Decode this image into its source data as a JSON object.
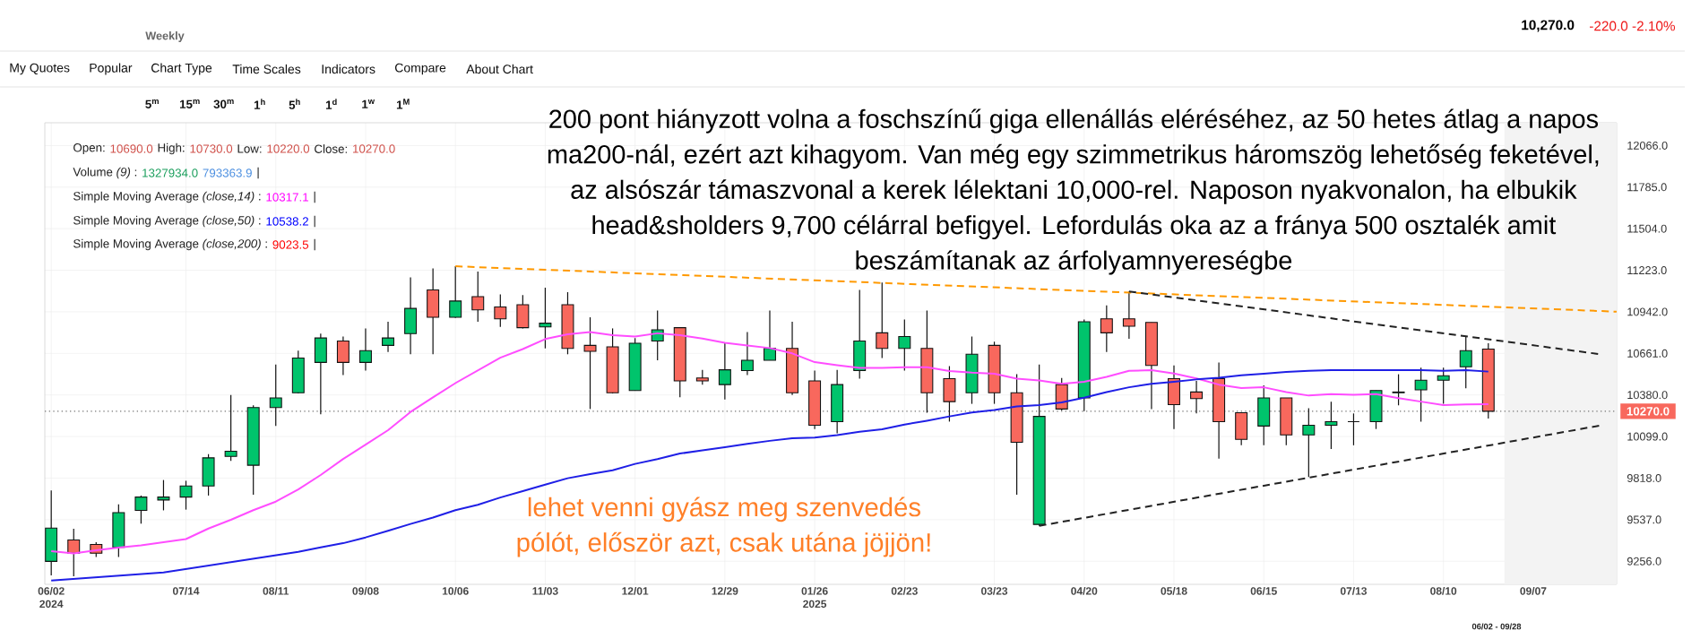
{
  "chart_data": {
    "type": "candlestick",
    "subtitle": "Weekly",
    "x": [
      "2024-06-02",
      "2024-06-09",
      "2024-06-16",
      "2024-06-23",
      "2024-06-30",
      "2024-07-07",
      "2024-07-14",
      "2024-07-21",
      "2024-07-28",
      "2024-08-04",
      "2024-08-11",
      "2024-08-18",
      "2024-08-25",
      "2024-09-01",
      "2024-09-08",
      "2024-09-15",
      "2024-09-22",
      "2024-09-29",
      "2024-10-06",
      "2024-10-13",
      "2024-10-20",
      "2024-10-27",
      "2024-11-03",
      "2024-11-10",
      "2024-11-17",
      "2024-11-24",
      "2024-12-01",
      "2024-12-08",
      "2024-12-15",
      "2024-12-22",
      "2024-12-29",
      "2025-01-05",
      "2025-01-12",
      "2025-01-19",
      "2025-01-26",
      "2025-02-02",
      "2025-02-09",
      "2025-02-16",
      "2025-02-23",
      "2025-03-02",
      "2025-03-09",
      "2025-03-16",
      "2025-03-23",
      "2025-03-30",
      "2025-04-06",
      "2025-04-13",
      "2025-04-20",
      "2025-04-27",
      "2025-05-04",
      "2025-05-11",
      "2025-05-18",
      "2025-05-25",
      "2025-06-01",
      "2025-06-08",
      "2025-06-15",
      "2025-06-22",
      "2025-06-29",
      "2025-07-06",
      "2025-07-13",
      "2025-07-20",
      "2025-07-27",
      "2025-08-03",
      "2025-08-10",
      "2025-08-17",
      "2025-08-24"
    ],
    "ohlc": [
      [
        9255,
        9735,
        9160,
        9480
      ],
      [
        9400,
        9475,
        9155,
        9310
      ],
      [
        9370,
        9385,
        9285,
        9310
      ],
      [
        9350,
        9640,
        9285,
        9585
      ],
      [
        9600,
        9700,
        9510,
        9690
      ],
      [
        9670,
        9805,
        9600,
        9690
      ],
      [
        9690,
        9800,
        9605,
        9765
      ],
      [
        9765,
        9980,
        9700,
        9955
      ],
      [
        9965,
        10380,
        9935,
        10000
      ],
      [
        9905,
        10310,
        9705,
        10295
      ],
      [
        10295,
        10585,
        10170,
        10360
      ],
      [
        10395,
        10680,
        10390,
        10630
      ],
      [
        10600,
        10795,
        10250,
        10765
      ],
      [
        10745,
        10775,
        10515,
        10600
      ],
      [
        10600,
        10830,
        10545,
        10680
      ],
      [
        10715,
        10875,
        10670,
        10765
      ],
      [
        10795,
        11175,
        10655,
        10965
      ],
      [
        11090,
        11235,
        10655,
        10905
      ],
      [
        10905,
        11250,
        10900,
        11015
      ],
      [
        11045,
        11215,
        10875,
        10955
      ],
      [
        10975,
        11060,
        10840,
        10895
      ],
      [
        10990,
        11055,
        10830,
        10835
      ],
      [
        10840,
        11105,
        10695,
        10865
      ],
      [
        10990,
        11075,
        10655,
        10695
      ],
      [
        10715,
        10905,
        10285,
        10675
      ],
      [
        10705,
        10830,
        10390,
        10395
      ],
      [
        10410,
        10765,
        10410,
        10730
      ],
      [
        10745,
        10950,
        10615,
        10820
      ],
      [
        10835,
        10835,
        10365,
        10475
      ],
      [
        10495,
        10550,
        10450,
        10475
      ],
      [
        10450,
        10730,
        10350,
        10550
      ],
      [
        10545,
        10805,
        10515,
        10615
      ],
      [
        10615,
        10950,
        10615,
        10695
      ],
      [
        10695,
        10875,
        10380,
        10395
      ],
      [
        10475,
        10545,
        10150,
        10175
      ],
      [
        10200,
        10550,
        10120,
        10450
      ],
      [
        10545,
        11090,
        10490,
        10745
      ],
      [
        10800,
        11140,
        10630,
        10695
      ],
      [
        10695,
        10890,
        10545,
        10775
      ],
      [
        10695,
        10950,
        10260,
        10395
      ],
      [
        10490,
        10575,
        10200,
        10335
      ],
      [
        10395,
        10775,
        10320,
        10655
      ],
      [
        10715,
        10740,
        10320,
        10395
      ],
      [
        10395,
        10520,
        9705,
        10060
      ],
      [
        9505,
        10585,
        9495,
        10235
      ],
      [
        10450,
        10495,
        10275,
        10285
      ],
      [
        10360,
        10890,
        10270,
        10875
      ],
      [
        10895,
        10985,
        10670,
        10800
      ],
      [
        10895,
        11080,
        10760,
        10845
      ],
      [
        10870,
        10870,
        10285,
        10580
      ],
      [
        10490,
        10580,
        10150,
        10315
      ],
      [
        10400,
        10475,
        10255,
        10355
      ],
      [
        10490,
        10600,
        9950,
        10200
      ],
      [
        10260,
        10260,
        10040,
        10080
      ],
      [
        10170,
        10445,
        10040,
        10360
      ],
      [
        10360,
        10360,
        10040,
        10110
      ],
      [
        10110,
        10290,
        9825,
        10175
      ],
      [
        10175,
        10335,
        10015,
        10200
      ],
      [
        10200,
        10255,
        10040,
        10200
      ],
      [
        10200,
        10410,
        10150,
        10410
      ],
      [
        10395,
        10520,
        10310,
        10400
      ],
      [
        10415,
        10565,
        10200,
        10480
      ],
      [
        10480,
        10565,
        10320,
        10510
      ],
      [
        10570,
        10775,
        10425,
        10680
      ],
      [
        10690,
        10730,
        10220,
        10270
      ]
    ],
    "colors": [
      "#00c46c",
      "#f8685d",
      "#f8685d",
      "#00c46c",
      "#00c46c",
      "#00c46c",
      "#00c46c",
      "#00c46c",
      "#00c46c",
      "#00c46c",
      "#00c46c",
      "#00c46c",
      "#00c46c",
      "#f8685d",
      "#00c46c",
      "#00c46c",
      "#00c46c",
      "#f8685d",
      "#00c46c",
      "#f8685d",
      "#f8685d",
      "#f8685d",
      "#00c46c",
      "#f8685d",
      "#f8685d",
      "#f8685d",
      "#00c46c",
      "#00c46c",
      "#f8685d",
      "#f8685d",
      "#00c46c",
      "#00c46c",
      "#00c46c",
      "#f8685d",
      "#f8685d",
      "#00c46c",
      "#00c46c",
      "#f8685d",
      "#00c46c",
      "#f8685d",
      "#f8685d",
      "#00c46c",
      "#f8685d",
      "#f8685d",
      "#00c46c",
      "#f8685d",
      "#00c46c",
      "#f8685d",
      "#f8685d",
      "#f8685d",
      "#f8685d",
      "#f8685d",
      "#f8685d",
      "#f8685d",
      "#00c46c",
      "#f8685d",
      "#00c46c",
      "#00c46c",
      "#111111",
      "#00c46c",
      "#00c46c",
      "#00c46c",
      "#00c46c",
      "#00c46c",
      "#f8685d"
    ],
    "series": [
      {
        "type": "line",
        "color": "#ff4dff",
        "values": [
          9324,
          9309,
          9330,
          9348,
          9363,
          9384,
          9406,
          9477,
          9536,
          9601,
          9659,
          9741,
          9839,
          9947,
          10044,
          10142,
          10265,
          10364,
          10460,
          10546,
          10632,
          10690,
          10758,
          10790,
          10806,
          10784,
          10775,
          10797,
          10784,
          10762,
          10732,
          10715,
          10697,
          10661,
          10602,
          10581,
          10563,
          10563,
          10568,
          10568,
          10542,
          10531,
          10524,
          10490,
          10478,
          10455,
          10469,
          10502,
          10543,
          10548,
          10525,
          10492,
          10450,
          10427,
          10432,
          10399,
          10376,
          10386,
          10381,
          10386,
          10358,
          10335,
          10311,
          10316,
          10317
        ]
      },
      {
        "type": "line",
        "color": "#1f1fe6",
        "x": [
          "2024-06-02",
          "2024-07-07",
          "2024-07-28",
          "2024-08-18",
          "2024-08-25",
          "2024-09-01",
          "2024-09-08",
          "2024-09-15",
          "2024-09-22",
          "2024-09-29",
          "2024-10-06",
          "2024-10-13",
          "2024-10-20",
          "2024-10-27",
          "2024-11-03",
          "2024-11-10",
          "2024-11-17",
          "2024-11-24",
          "2024-12-01",
          "2024-12-08",
          "2024-12-15",
          "2024-12-22",
          "2024-12-29",
          "2025-01-05",
          "2025-01-12",
          "2025-01-19",
          "2025-01-26",
          "2025-02-02",
          "2025-02-09",
          "2025-02-16",
          "2025-02-23",
          "2025-03-02",
          "2025-03-09",
          "2025-03-16",
          "2025-03-23",
          "2025-03-30",
          "2025-04-06",
          "2025-04-13",
          "2025-04-20",
          "2025-04-27",
          "2025-05-04",
          "2025-05-11",
          "2025-05-18",
          "2025-05-25",
          "2025-06-01",
          "2025-06-08",
          "2025-06-15",
          "2025-06-22",
          "2025-06-29",
          "2025-07-06",
          "2025-07-13",
          "2025-07-20",
          "2025-07-27",
          "2025-08-03",
          "2025-08-10",
          "2025-08-17",
          "2025-08-24"
        ],
        "values": [
          9125,
          9180,
          9250,
          9320,
          9350,
          9378,
          9417,
          9462,
          9508,
          9551,
          9601,
          9638,
          9687,
          9730,
          9774,
          9817,
          9845,
          9871,
          9914,
          9947,
          9984,
          10005,
          10027,
          10049,
          10070,
          10087,
          10092,
          10109,
          10131,
          10148,
          10180,
          10206,
          10235,
          10261,
          10278,
          10302,
          10311,
          10330,
          10362,
          10399,
          10432,
          10455,
          10469,
          10485,
          10497,
          10513,
          10524,
          10536,
          10543,
          10548,
          10548,
          10548,
          10548,
          10548,
          10543,
          10548,
          10538
        ]
      },
      {
        "type": "line",
        "color": "#ff9900",
        "line_style": "dashed",
        "x": [
          "2024-10-06",
          "2025-10-03"
        ],
        "values": [
          11250,
          10943
        ]
      },
      {
        "type": "line",
        "color": "#222222",
        "line_style": "dashed",
        "x": [
          "2025-05-04",
          "2025-09-28"
        ],
        "values": [
          11080,
          10655
        ]
      },
      {
        "type": "line",
        "color": "#222222",
        "line_style": "dashed",
        "x": [
          "2025-04-06",
          "2025-09-28"
        ],
        "values": [
          9495,
          10174
        ]
      }
    ],
    "xlim": [
      "2024-05-31",
      "2025-10-03"
    ],
    "ylim": [
      9100,
      12220
    ],
    "xticks": [
      {
        "value": "2024-06-02",
        "label": "06/02 2024"
      },
      {
        "value": "2024-07-14",
        "label": "07/14"
      },
      {
        "value": "2024-08-11",
        "label": "08/11"
      },
      {
        "value": "2024-09-08",
        "label": "09/08"
      },
      {
        "value": "2024-10-06",
        "label": "10/06"
      },
      {
        "value": "2024-11-03",
        "label": "11/03"
      },
      {
        "value": "2024-12-01",
        "label": "12/01"
      },
      {
        "value": "2024-12-29",
        "label": "12/29"
      },
      {
        "value": "2025-01-26",
        "label": "01/26 2025"
      },
      {
        "value": "2025-02-23",
        "label": "02/23"
      },
      {
        "value": "2025-03-23",
        "label": "03/23"
      },
      {
        "value": "2025-04-20",
        "label": "04/20"
      },
      {
        "value": "2025-05-18",
        "label": "05/18"
      },
      {
        "value": "2025-06-15",
        "label": "06/15"
      },
      {
        "value": "2025-07-13",
        "label": "07/13"
      },
      {
        "value": "2025-08-10",
        "label": "08/10"
      },
      {
        "value": "2025-09-07",
        "label": "09/07"
      }
    ],
    "yticks": [
      {
        "value": 9256,
        "label": "9256.0"
      },
      {
        "value": 9537,
        "label": "9537.0"
      },
      {
        "value": 9818,
        "label": "9818.0"
      },
      {
        "value": 10099,
        "label": "10099.0"
      },
      {
        "value": 10380,
        "label": "10380.0"
      },
      {
        "value": 10661,
        "label": "10661.0"
      },
      {
        "value": 10942,
        "label": "10942.0"
      },
      {
        "value": 11223,
        "label": "11223.0"
      },
      {
        "value": 11504,
        "label": "11504.0"
      },
      {
        "value": 11785,
        "label": "11785.0"
      },
      {
        "value": 12066,
        "label": "12066.0"
      }
    ],
    "grid": true,
    "ref_lines": [
      {
        "axis": "y",
        "value": 10270,
        "label": "10270.0",
        "color": "#777777",
        "line_style": "dotted"
      }
    ],
    "bands": [
      {
        "axis": "x",
        "from": "2025-08-29",
        "to": "2025-10-03",
        "color": "#f3f3f3"
      }
    ],
    "annotations": [
      "10,270.0",
      "-220.0 -2.10%",
      "My Quotes",
      "Popular",
      "Chart Type",
      "Time Scales",
      "Indicators",
      "Compare",
      "About Chart",
      "5$^{m}$",
      "15$^{m}$",
      "30$^{m}$",
      "1$^{h}$",
      "5$^{h}$",
      "1$^{d}$",
      "1$^{w}$",
      "1$^{M}$",
      "Open:",
      "10690.0",
      "High:",
      "10730.0",
      "Low:",
      "10220.0",
      "Close:",
      "10270.0",
      "Volume *(9)* :",
      "1327934.0",
      "793363.9",
      "|",
      "Simple Moving Average *(close,14)* :",
      "10317.1",
      "|",
      "Simple Moving Average *(close,50)* :",
      "10538.2",
      "|",
      "Simple Moving Average *(close,200)* :",
      "9023.5",
      "|",
      "200 pont hiányzott volna a foschszínű giga ellenállás eléréséhez, az 50 hetes átlag a napos ma200-nál, ezért azt kihagyom. Van még egy szimmetrikus háromszög lehetőség feketével, az alsószár támaszvonal a kerek lélektani 10,000-rel. Naposon nyakvonalon, ha elbukik head&sholders 9,700 célárral befigyel. Lefordulás oka az a fránya 500 osztalék amit beszámítanak az árfolyamnyereségbe",
      "lehet venni gyász meg szenvedés pólót, először azt, csak utána jöjjön!",
      "06/02 - 09/28"
    ]
  }
}
